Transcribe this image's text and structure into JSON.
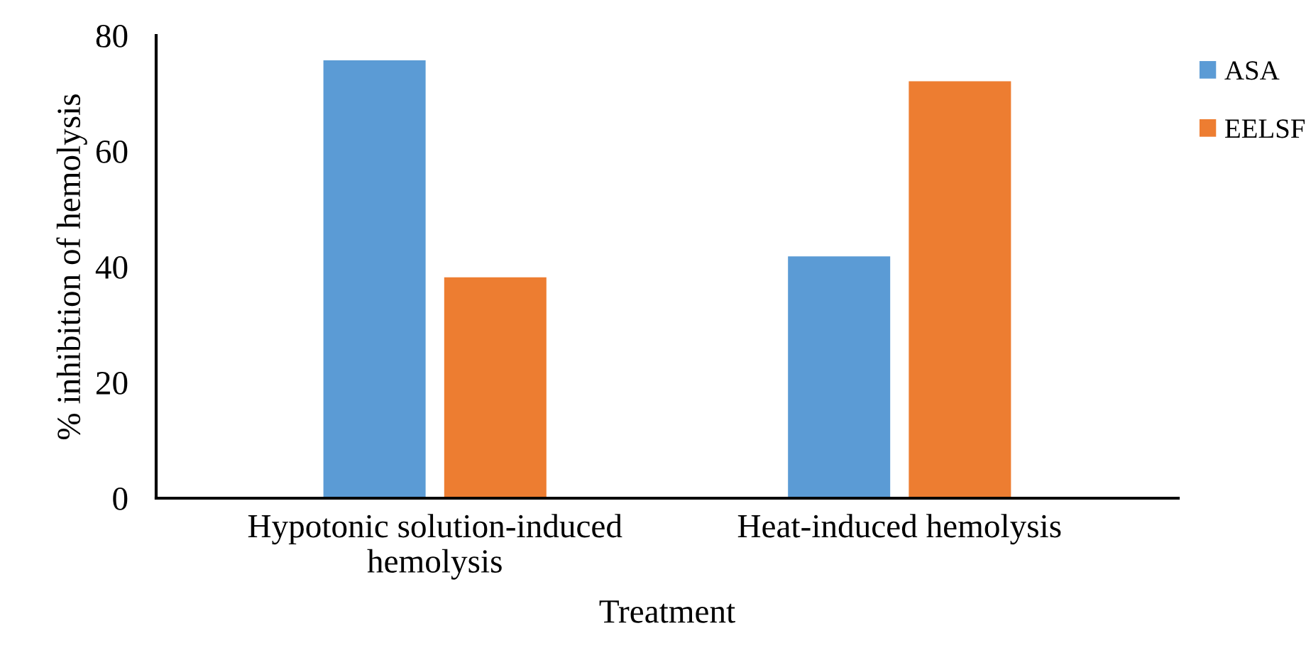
{
  "chart_data": {
    "type": "bar",
    "xlabel": "Treatment",
    "ylabel": "% inhibition of hemolysis",
    "categories": [
      "Hypotonic solution-induced\nhemolysis",
      "Heat-induced hemolysis"
    ],
    "series": [
      {
        "name": "ASA",
        "color": "#5b9bd5",
        "values": [
          75.7,
          41.8
        ]
      },
      {
        "name": "EELSF",
        "color": "#ed7d31",
        "values": [
          38.2,
          72.1
        ]
      }
    ],
    "ylim": [
      0,
      80
    ],
    "yticks": [
      0,
      20,
      40,
      60,
      80
    ],
    "grid": false,
    "legend": "right"
  }
}
